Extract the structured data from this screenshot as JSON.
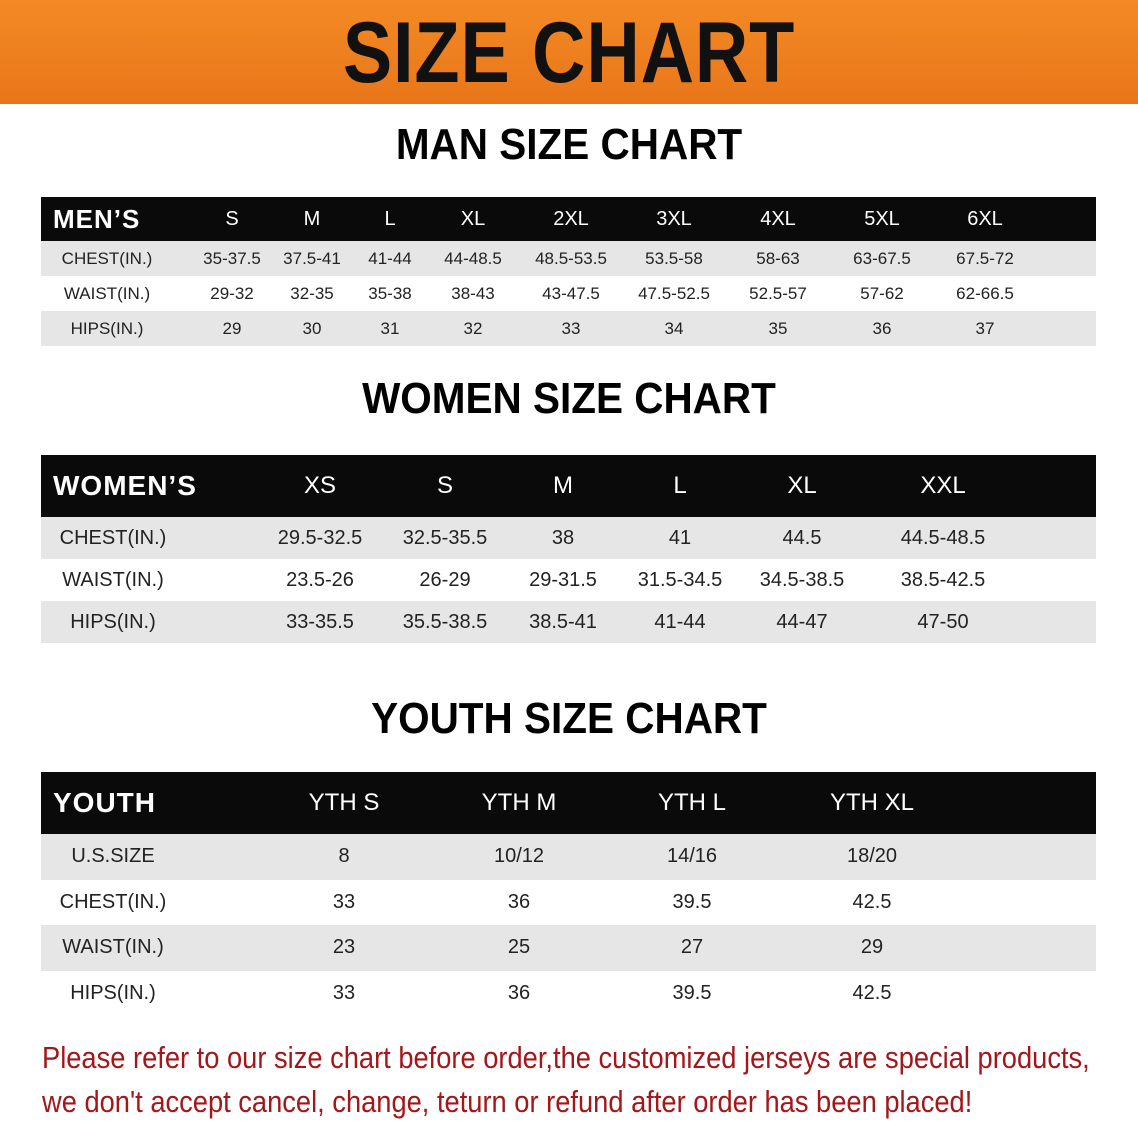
{
  "banner_title": "SIZE CHART",
  "men": {
    "title": "MAN SIZE CHART",
    "header": [
      "MEN’S",
      "S",
      "M",
      "L",
      "XL",
      "2XL",
      "3XL",
      "4XL",
      "5XL",
      "6XL"
    ],
    "rows": [
      [
        "CHEST(IN.)",
        "35-37.5",
        "37.5-41",
        "41-44",
        "44-48.5",
        "48.5-53.5",
        "53.5-58",
        "58-63",
        "63-67.5",
        "67.5-72"
      ],
      [
        "WAIST(IN.)",
        "29-32",
        "32-35",
        "35-38",
        "38-43",
        "43-47.5",
        "47.5-52.5",
        "52.5-57",
        "57-62",
        "62-66.5"
      ],
      [
        "HIPS(IN.)",
        "29",
        "30",
        "31",
        "32",
        "33",
        "34",
        "35",
        "36",
        "37"
      ]
    ]
  },
  "women": {
    "title": "WOMEN SIZE CHART",
    "header": [
      "WOMEN’S",
      "XS",
      "S",
      "M",
      "L",
      "XL",
      "XXL"
    ],
    "rows": [
      [
        "CHEST(IN.)",
        "29.5-32.5",
        "32.5-35.5",
        "38",
        "41",
        "44.5",
        "44.5-48.5"
      ],
      [
        "WAIST(IN.)",
        "23.5-26",
        "26-29",
        "29-31.5",
        "31.5-34.5",
        "34.5-38.5",
        "38.5-42.5"
      ],
      [
        "HIPS(IN.)",
        "33-35.5",
        "35.5-38.5",
        "38.5-41",
        "41-44",
        "44-47",
        "47-50"
      ]
    ]
  },
  "youth": {
    "title": "YOUTH SIZE CHART",
    "header": [
      "YOUTH",
      "YTH S",
      "YTH M",
      "YTH L",
      "YTH XL"
    ],
    "rows": [
      [
        "U.S.SIZE",
        "8",
        "10/12",
        "14/16",
        "18/20"
      ],
      [
        "CHEST(IN.)",
        "33",
        "36",
        "39.5",
        "42.5"
      ],
      [
        "WAIST(IN.)",
        "23",
        "25",
        "27",
        "29"
      ],
      [
        "HIPS(IN.)",
        "33",
        "36",
        "39.5",
        "42.5"
      ]
    ]
  },
  "note_lines": [
    "Please refer to our size chart before order,the customized jerseys are special products,",
    "we don't accept cancel, change, teturn or refund after order has been placed!"
  ],
  "colors": {
    "banner": "#ee7d1f",
    "header_row": "#0a0a0a",
    "note_text": "#a3161a"
  }
}
